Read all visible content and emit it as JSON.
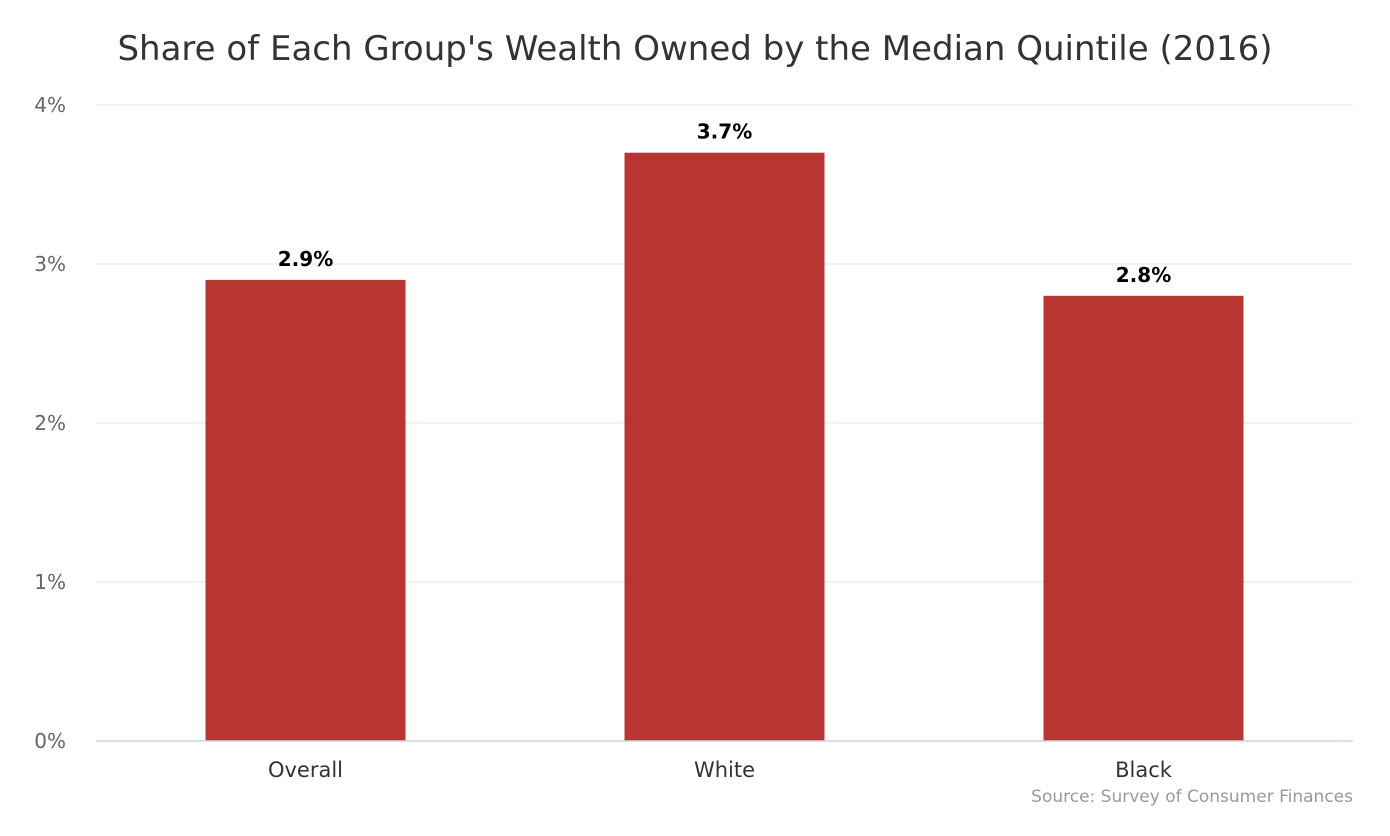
{
  "chart_data": {
    "type": "bar",
    "title": "Share of Each Group's Wealth Owned by the Median Quintile (2016)",
    "categories": [
      "Overall",
      "White",
      "Black"
    ],
    "values": [
      2.9,
      3.7,
      2.8
    ],
    "data_labels": [
      "2.9%",
      "3.7%",
      "2.8%"
    ],
    "y_ticks": [
      0,
      1,
      2,
      3,
      4
    ],
    "y_tick_labels": [
      "0%",
      "1%",
      "2%",
      "3%",
      "4%"
    ],
    "ylim": [
      0,
      4
    ],
    "xlabel": "",
    "ylabel": "",
    "grid": true,
    "legend": "none",
    "bar_color": "#b83632",
    "source": "Source: Survey of Consumer Finances"
  }
}
